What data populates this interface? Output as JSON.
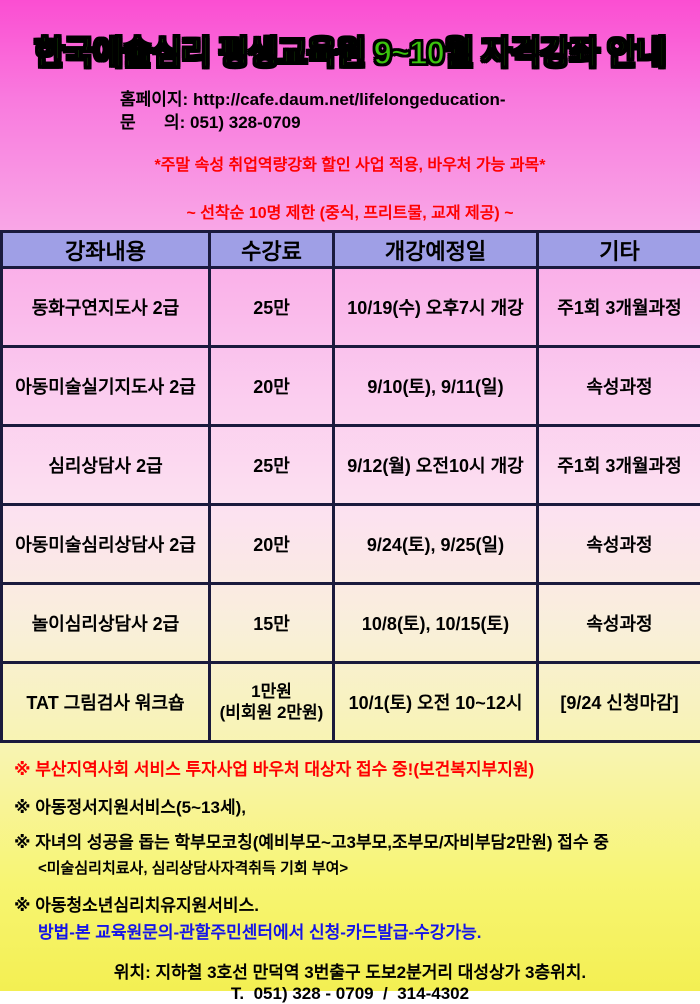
{
  "header": {
    "title": "한국예술심리 평생교육원 9~10월 자격강좌 안내",
    "homepage_line": "홈페이지: http://cafe.daum.net/lifelongeducation-",
    "inquiry_line": "문      의: 051) 328-0709",
    "promo_notice": "*주말 속성 취업역량강화 할인 사업 적용, 바우처 가능 과목*",
    "limit_notice": "~ 선착순 10명 제한 (중식, 프리트물, 교재 제공) ~"
  },
  "table": {
    "headers": {
      "course": "강좌내용",
      "fee": "수강료",
      "date": "개강예정일",
      "etc": "기타"
    },
    "rows": [
      {
        "course": "동화구연지도사 2급",
        "fee": "25만",
        "date": "10/19(수) 오후7시 개강",
        "etc": "주1회 3개월과정"
      },
      {
        "course": "아동미술실기지도사 2급",
        "fee": "20만",
        "date": "9/10(토), 9/11(일)",
        "etc": "속성과정"
      },
      {
        "course": "심리상담사 2급",
        "fee": "25만",
        "date": "9/12(월) 오전10시 개강",
        "etc": "주1회 3개월과정"
      },
      {
        "course": "아동미술심리상담사 2급",
        "fee": "20만",
        "date": "9/24(토), 9/25(일)",
        "etc": "속성과정"
      },
      {
        "course": "놀이심리상담사 2급",
        "fee": "15만",
        "date": "10/8(토), 10/15(토)",
        "etc": "속성과정"
      },
      {
        "course": "TAT 그림검사 워크숍",
        "fee_line1": "1만원",
        "fee_line2": "(비회원 2만원)",
        "date": "10/1(토) 오전 10~12시",
        "etc": "[9/24 신청마감]"
      }
    ]
  },
  "notes": {
    "voucher": "※ 부산지역사회 서비스 투자사업 바우처 대상자 접수 중!(보건복지부지원)",
    "child_service": "※ 아동정서지원서비스(5~13세),",
    "parent_coaching": "※ 자녀의 성공을 돕는 학부모코칭(예비부모~고3부모,조부모/자비부담2만원) 접수 중",
    "license_sub": "<미술심리치료사, 심리상담사자격취득 기회 부여>",
    "youth_service": "※ 아동청소년심리치유지원서비스.",
    "method": "방법-본 교육원문의-관할주민센터에서 신청-카드발급-수강가능."
  },
  "footer": {
    "location": "위치: 지하철 3호선 만덕역 3번출구 도보2분거리 대성상가 3층위치.",
    "phone": "T.  051) 328 - 0709  /  314-4302"
  },
  "colors": {
    "title_green": "#3bc40d",
    "accent_red": "#ff0000",
    "table_navy_text": "#2d2da0",
    "method_blue": "#1414e8",
    "header_purple": "#9f9fe6",
    "table_border": "#1a1a3d",
    "bg_top": "#fb4ed2",
    "bg_bottom": "#f3ef52"
  }
}
